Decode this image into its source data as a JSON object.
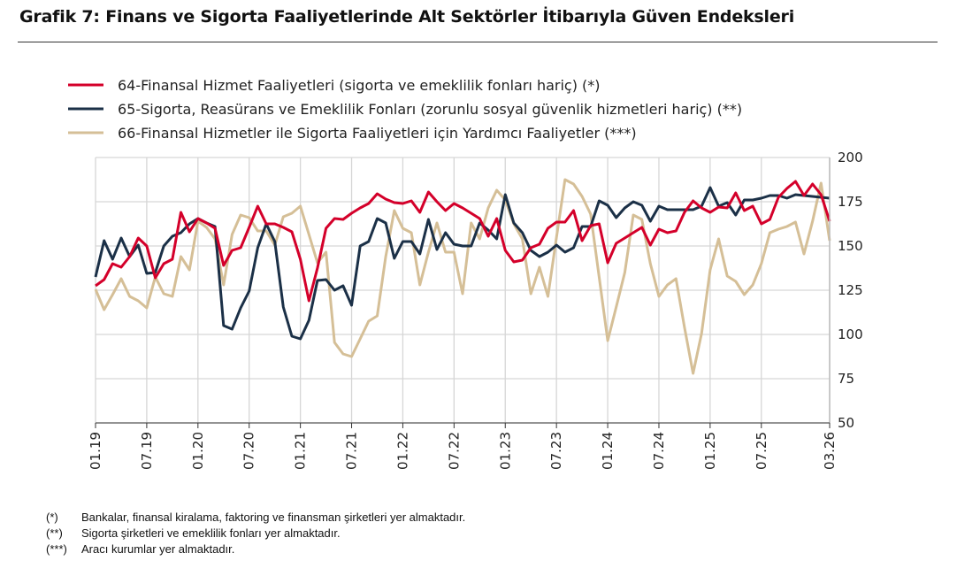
{
  "title": "Grafik 7:  Finans ve Sigorta Faaliyetlerinde Alt Sektörler İtibarıyla Güven Endeksleri",
  "chart_data": {
    "type": "line",
    "title": "Grafik 7:  Finans ve Sigorta Faaliyetlerinde Alt Sektörler İtibarıyla Güven Endeksleri",
    "xlabel": "",
    "ylabel": "",
    "x_start": "01.19",
    "x_end": "03.26",
    "x_frequency": "monthly",
    "x_tick_labels": [
      "01.19",
      "07.19",
      "01.20",
      "07.20",
      "01.21",
      "07.21",
      "01.22",
      "07.22",
      "01.23",
      "07.23",
      "01.24",
      "07.24",
      "01.25",
      "07.25",
      "03.26"
    ],
    "x_tick_index": [
      0,
      6,
      12,
      18,
      24,
      30,
      36,
      42,
      48,
      54,
      60,
      66,
      72,
      78,
      86
    ],
    "ylim": [
      50,
      200
    ],
    "y_ticks": [
      50,
      75,
      100,
      125,
      150,
      175,
      200
    ],
    "y_axis_side": "right",
    "grid": true,
    "legend_position": "top-left",
    "series": [
      {
        "name": "64-Finansal Hizmet Faaliyetleri (sigorta ve emeklilik fonları hariç) (*)",
        "color": "#d4002a",
        "values": [
          127.5,
          131,
          140,
          138,
          144,
          154.5,
          150,
          132,
          140,
          142.5,
          169,
          158,
          165.5,
          163,
          160,
          139,
          147.5,
          149,
          160.5,
          172.5,
          162.5,
          162.5,
          160.5,
          158,
          142.5,
          119,
          137.5,
          160,
          165.5,
          165,
          168.5,
          171.5,
          174,
          179.5,
          176.5,
          174.5,
          174,
          175.5,
          169,
          180.5,
          175,
          170,
          174,
          171.5,
          168.5,
          165.5,
          155.5,
          165.5,
          147.5,
          141,
          142,
          149,
          151,
          160,
          163.5,
          163.5,
          170,
          153,
          161.5,
          162.5,
          140.5,
          151.5,
          154.5,
          157.5,
          160.5,
          150.5,
          159.5,
          157.5,
          158.5,
          169,
          175.5,
          171.5,
          169,
          172,
          171.5,
          180,
          170,
          172.5,
          162.5,
          165,
          177.5,
          182.5,
          186.5,
          178.5,
          185,
          179,
          164
        ]
      },
      {
        "name": "65-Sigorta, Reasürans ve Emeklilik Fonları (zorunlu sosyal güvenlik hizmetleri hariç) (**)",
        "color": "#1b3047",
        "values": [
          132.5,
          153,
          142.5,
          154.5,
          144,
          150.5,
          134.5,
          135,
          150,
          155.5,
          157.5,
          162.5,
          165.5,
          163,
          161,
          105,
          103,
          115,
          124.5,
          149,
          162.5,
          152.5,
          115.5,
          99,
          97.5,
          108,
          130.5,
          131,
          125,
          127.5,
          116.5,
          150,
          152.5,
          165.5,
          163,
          143,
          152.5,
          152.5,
          145.5,
          165,
          148,
          157.5,
          151,
          150,
          150,
          163,
          159,
          154,
          179,
          163,
          157.5,
          147.5,
          144,
          146.5,
          150.5,
          146.5,
          149,
          161,
          161,
          175.5,
          173,
          166,
          171.5,
          175,
          173,
          164,
          172.5,
          170.5,
          170.5,
          170.5,
          170.5,
          172.5,
          183,
          172.5,
          174.5,
          167.5,
          176,
          176,
          177,
          178.5,
          178.5,
          177,
          179,
          178.5,
          178,
          177.5,
          177
        ]
      },
      {
        "name": "66-Finansal Hizmetler ile Sigorta Faaliyetleri için Yardımcı Faaliyetler (***)",
        "color": "#d5bf97",
        "values": [
          125.5,
          114,
          122.5,
          131.5,
          121.5,
          119,
          115,
          132.5,
          123,
          121.5,
          144,
          136.5,
          164,
          160.5,
          154,
          128,
          156.5,
          167.5,
          166,
          158.5,
          158.5,
          150.5,
          166.5,
          168.5,
          172.5,
          156.5,
          140.5,
          146.5,
          95.5,
          89,
          87.5,
          97.5,
          107.5,
          110.5,
          144,
          170,
          160,
          157.5,
          128,
          146.5,
          163,
          146.5,
          146.5,
          123,
          163,
          154,
          171.5,
          181.5,
          176,
          162.5,
          154,
          123,
          138,
          121.5,
          155,
          187.5,
          185,
          178,
          168,
          132.5,
          96.5,
          115.5,
          135,
          167.5,
          165,
          140,
          121.5,
          128,
          131.5,
          104,
          78,
          100.5,
          136.5,
          154,
          133,
          130,
          122.5,
          128,
          140,
          157.5,
          159.5,
          161,
          163.5,
          145.5,
          164,
          185.5,
          153
        ]
      }
    ]
  },
  "notes": [
    {
      "marker": "(*)",
      "text": "Bankalar, finansal kiralama, faktoring ve finansman şirketleri yer almaktadır."
    },
    {
      "marker": "(**)",
      "text": "Sigorta şirketleri ve emeklilik fonları yer almaktadır."
    },
    {
      "marker": "(***)",
      "text": "Aracı kurumlar yer almaktadır."
    }
  ]
}
